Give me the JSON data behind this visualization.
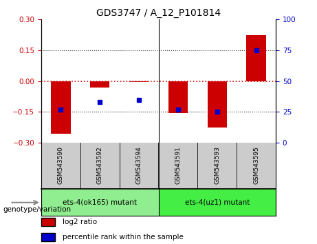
{
  "title": "GDS3747 / A_12_P101814",
  "samples": [
    "GSM543590",
    "GSM543592",
    "GSM543594",
    "GSM543591",
    "GSM543593",
    "GSM543595"
  ],
  "log2_ratio": [
    -0.255,
    -0.03,
    -0.005,
    -0.155,
    -0.225,
    0.225
  ],
  "percentile_rank": [
    27,
    33,
    35,
    27,
    25,
    75
  ],
  "ylim_left": [
    -0.3,
    0.3
  ],
  "ylim_right": [
    0,
    100
  ],
  "yticks_left": [
    -0.3,
    -0.15,
    0,
    0.15,
    0.3
  ],
  "yticks_right": [
    0,
    25,
    50,
    75,
    100
  ],
  "bar_color": "#cc0000",
  "dot_color": "#0000cc",
  "zero_line_color": "#cc0000",
  "dotted_line_color": "#333333",
  "groups": [
    {
      "label": "ets-4(ok165) mutant",
      "start": 0,
      "end": 3,
      "color": "#90ee90"
    },
    {
      "label": "ets-4(uz1) mutant",
      "start": 3,
      "end": 6,
      "color": "#44ee44"
    }
  ],
  "group_label": "genotype/variation",
  "legend_items": [
    {
      "label": "log2 ratio",
      "color": "#cc0000"
    },
    {
      "label": "percentile rank within the sample",
      "color": "#0000cc"
    }
  ],
  "tick_label_color_left": "#cc0000",
  "tick_label_color_right": "#0000cc",
  "bar_width": 0.5
}
